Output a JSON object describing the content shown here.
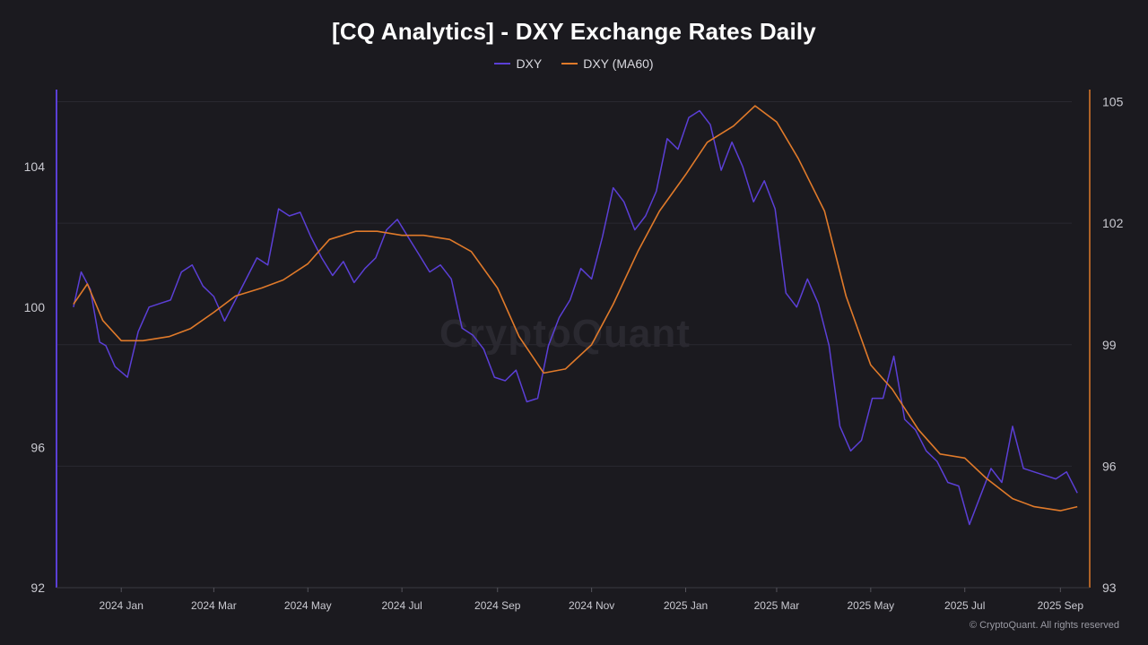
{
  "title": "[CQ Analytics] - DXY Exchange Rates Daily",
  "legend": [
    {
      "label": "DXY",
      "color": "#5b3fd6"
    },
    {
      "label": "DXY (MA60)",
      "color": "#e07a2a"
    }
  ],
  "watermark": "CryptoQuant",
  "copyright": "© CryptoQuant. All rights reserved",
  "colors": {
    "background": "#1b1a1f",
    "grid": "#2a2930",
    "dxy": "#5b3fd6",
    "ma60": "#e07a2a",
    "tick_text": "#c9c9d0"
  },
  "chart_data": {
    "type": "line",
    "title": "[CQ Analytics] - DXY Exchange Rates Daily",
    "x_ticks": [
      "2024 Jan",
      "2024 Mar",
      "2024 May",
      "2024 Jul",
      "2024 Sep",
      "2024 Nov",
      "2025 Jan",
      "2025 Mar",
      "2025 May",
      "2025 Jul",
      "2025 Sep"
    ],
    "left_axis": {
      "ticks": [
        "92",
        "96",
        "100",
        "104"
      ],
      "ylim": [
        92,
        106.2
      ]
    },
    "right_axis": {
      "ticks": [
        "93",
        "96",
        "99",
        "102",
        "105"
      ],
      "ylim": [
        93,
        105.3
      ]
    },
    "grid": true,
    "legend_position": "top-center",
    "series": [
      {
        "name": "DXY",
        "axis": "left",
        "x": [
          "2023-12-01",
          "2023-12-06",
          "2023-12-12",
          "2023-12-18",
          "2023-12-22",
          "2023-12-28",
          "2024-01-05",
          "2024-01-12",
          "2024-01-19",
          "2024-01-26",
          "2024-02-02",
          "2024-02-09",
          "2024-02-16",
          "2024-02-23",
          "2024-03-01",
          "2024-03-08",
          "2024-03-15",
          "2024-03-22",
          "2024-03-29",
          "2024-04-05",
          "2024-04-12",
          "2024-04-19",
          "2024-04-26",
          "2024-05-03",
          "2024-05-10",
          "2024-05-17",
          "2024-05-24",
          "2024-05-31",
          "2024-06-07",
          "2024-06-14",
          "2024-06-21",
          "2024-06-28",
          "2024-07-05",
          "2024-07-12",
          "2024-07-19",
          "2024-07-26",
          "2024-08-02",
          "2024-08-09",
          "2024-08-16",
          "2024-08-23",
          "2024-08-30",
          "2024-09-06",
          "2024-09-13",
          "2024-09-20",
          "2024-09-27",
          "2024-10-04",
          "2024-10-11",
          "2024-10-18",
          "2024-10-25",
          "2024-11-01",
          "2024-11-08",
          "2024-11-15",
          "2024-11-22",
          "2024-11-29",
          "2024-12-06",
          "2024-12-13",
          "2024-12-20",
          "2024-12-27",
          "2025-01-03",
          "2025-01-10",
          "2025-01-17",
          "2025-01-24",
          "2025-01-31",
          "2025-02-07",
          "2025-02-14",
          "2025-02-21",
          "2025-02-28",
          "2025-03-07",
          "2025-03-14",
          "2025-03-21",
          "2025-03-28",
          "2025-04-04",
          "2025-04-11",
          "2025-04-18",
          "2025-04-25",
          "2025-05-02",
          "2025-05-09",
          "2025-05-16",
          "2025-05-23",
          "2025-05-30",
          "2025-06-06",
          "2025-06-13",
          "2025-06-20",
          "2025-06-27",
          "2025-07-04",
          "2025-07-11",
          "2025-07-18",
          "2025-07-25",
          "2025-08-01",
          "2025-08-08",
          "2025-08-15",
          "2025-08-22",
          "2025-08-29",
          "2025-09-05",
          "2025-09-12"
        ],
        "values": [
          100.0,
          101.0,
          100.5,
          99.0,
          98.9,
          98.3,
          98.0,
          99.3,
          100.0,
          100.1,
          100.2,
          101.0,
          101.2,
          100.6,
          100.3,
          99.6,
          100.2,
          100.8,
          101.4,
          101.2,
          102.8,
          102.6,
          102.7,
          102.0,
          101.4,
          100.9,
          101.3,
          100.7,
          101.1,
          101.4,
          102.2,
          102.5,
          102.0,
          101.5,
          101.0,
          101.2,
          100.8,
          99.4,
          99.2,
          98.8,
          98.0,
          97.9,
          98.2,
          97.3,
          97.4,
          98.9,
          99.7,
          100.2,
          101.1,
          100.8,
          102.0,
          103.4,
          103.0,
          102.2,
          102.6,
          103.3,
          104.8,
          104.5,
          105.4,
          105.6,
          105.2,
          103.9,
          104.7,
          104.0,
          103.0,
          103.6,
          102.8,
          100.4,
          100.0,
          100.8,
          100.1,
          98.9,
          96.6,
          95.9,
          96.2,
          97.4,
          97.4,
          98.6,
          96.8,
          96.5,
          95.9,
          95.6,
          95.0,
          94.9,
          93.8,
          94.6,
          95.4,
          95.0,
          96.6,
          95.4,
          95.3,
          95.2,
          95.1,
          95.3,
          94.7
        ]
      },
      {
        "name": "DXY (MA60)",
        "axis": "right",
        "x": [
          "2023-12-01",
          "2023-12-10",
          "2023-12-20",
          "2024-01-01",
          "2024-01-15",
          "2024-02-01",
          "2024-02-15",
          "2024-03-01",
          "2024-03-15",
          "2024-04-01",
          "2024-04-15",
          "2024-05-01",
          "2024-05-15",
          "2024-06-01",
          "2024-06-15",
          "2024-07-01",
          "2024-07-15",
          "2024-08-01",
          "2024-08-15",
          "2024-09-01",
          "2024-09-15",
          "2024-10-01",
          "2024-10-15",
          "2024-11-01",
          "2024-11-15",
          "2024-12-01",
          "2024-12-15",
          "2025-01-01",
          "2025-01-15",
          "2025-02-01",
          "2025-02-15",
          "2025-03-01",
          "2025-03-15",
          "2025-04-01",
          "2025-04-15",
          "2025-05-01",
          "2025-05-15",
          "2025-06-01",
          "2025-06-15",
          "2025-07-01",
          "2025-07-15",
          "2025-08-01",
          "2025-08-15",
          "2025-09-01",
          "2025-09-12"
        ],
        "values": [
          100.0,
          100.5,
          99.6,
          99.1,
          99.1,
          99.2,
          99.4,
          99.8,
          100.2,
          100.4,
          100.6,
          101.0,
          101.6,
          101.8,
          101.8,
          101.7,
          101.7,
          101.6,
          101.3,
          100.4,
          99.2,
          98.3,
          98.4,
          99.0,
          100.0,
          101.3,
          102.3,
          103.2,
          104.0,
          104.4,
          104.9,
          104.5,
          103.6,
          102.3,
          100.2,
          98.5,
          97.9,
          96.9,
          96.3,
          96.2,
          95.7,
          95.2,
          95.0,
          94.9,
          95.0
        ]
      }
    ]
  }
}
